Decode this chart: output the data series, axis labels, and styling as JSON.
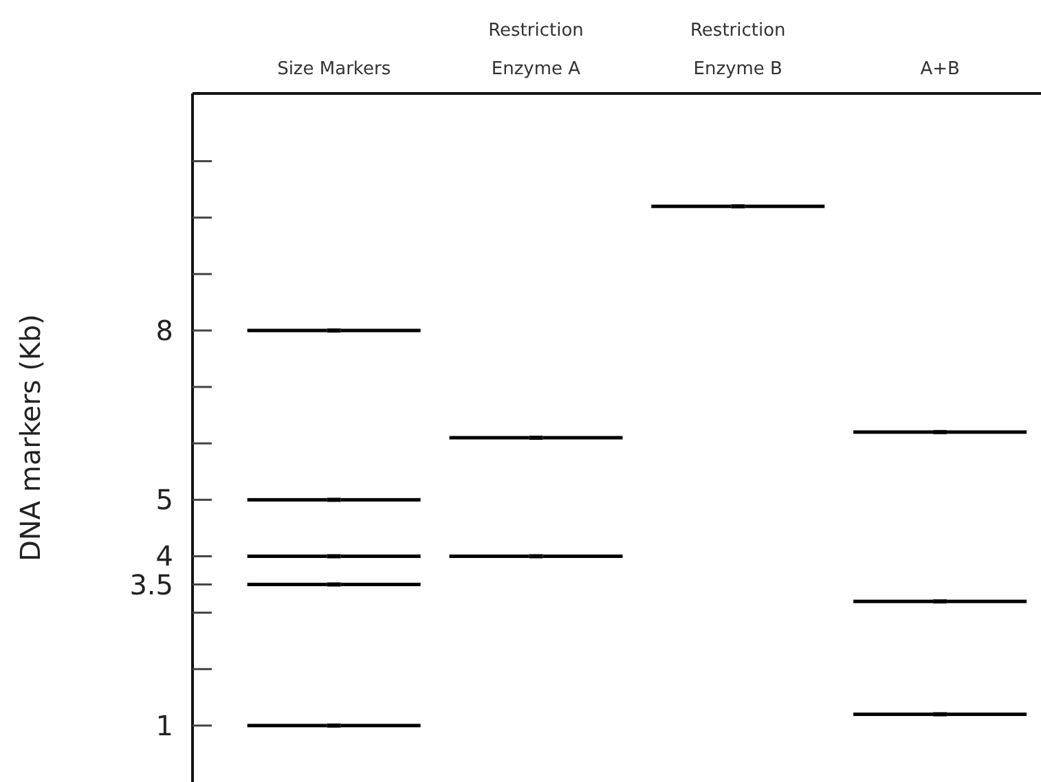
{
  "chart_data": {
    "type": "scatter",
    "ylabel": "DNA markers (Kb)",
    "categories": [
      "Size Markers",
      "Restriction Enzyme A",
      "Restriction Enzyme B",
      "A+B"
    ],
    "series": [
      {
        "color": "#000000",
        "values": [
          8,
          6.1,
          10.2,
          6.2
        ]
      },
      {
        "color": "#000000",
        "values": [
          5,
          4,
          null,
          3.2
        ]
      },
      {
        "color": "#000000",
        "values": [
          4,
          null,
          null,
          1.2
        ]
      },
      {
        "color": "#000000",
        "values": [
          3.5,
          null,
          null,
          null
        ]
      },
      {
        "color": "#000000",
        "values": [
          1,
          null,
          null,
          null
        ]
      }
    ],
    "ylim": [
      0,
      12.2
    ],
    "yticks": [
      1,
      {
        "value": 2,
        "label": null
      },
      {
        "value": 3,
        "label": null
      },
      3.5,
      4,
      5,
      {
        "value": 6,
        "label": null
      },
      {
        "value": 7,
        "label": null
      },
      8,
      {
        "value": 9,
        "label": null
      },
      {
        "value": 10,
        "label": null
      },
      {
        "value": 11,
        "label": null
      }
    ],
    "grid": false
  }
}
